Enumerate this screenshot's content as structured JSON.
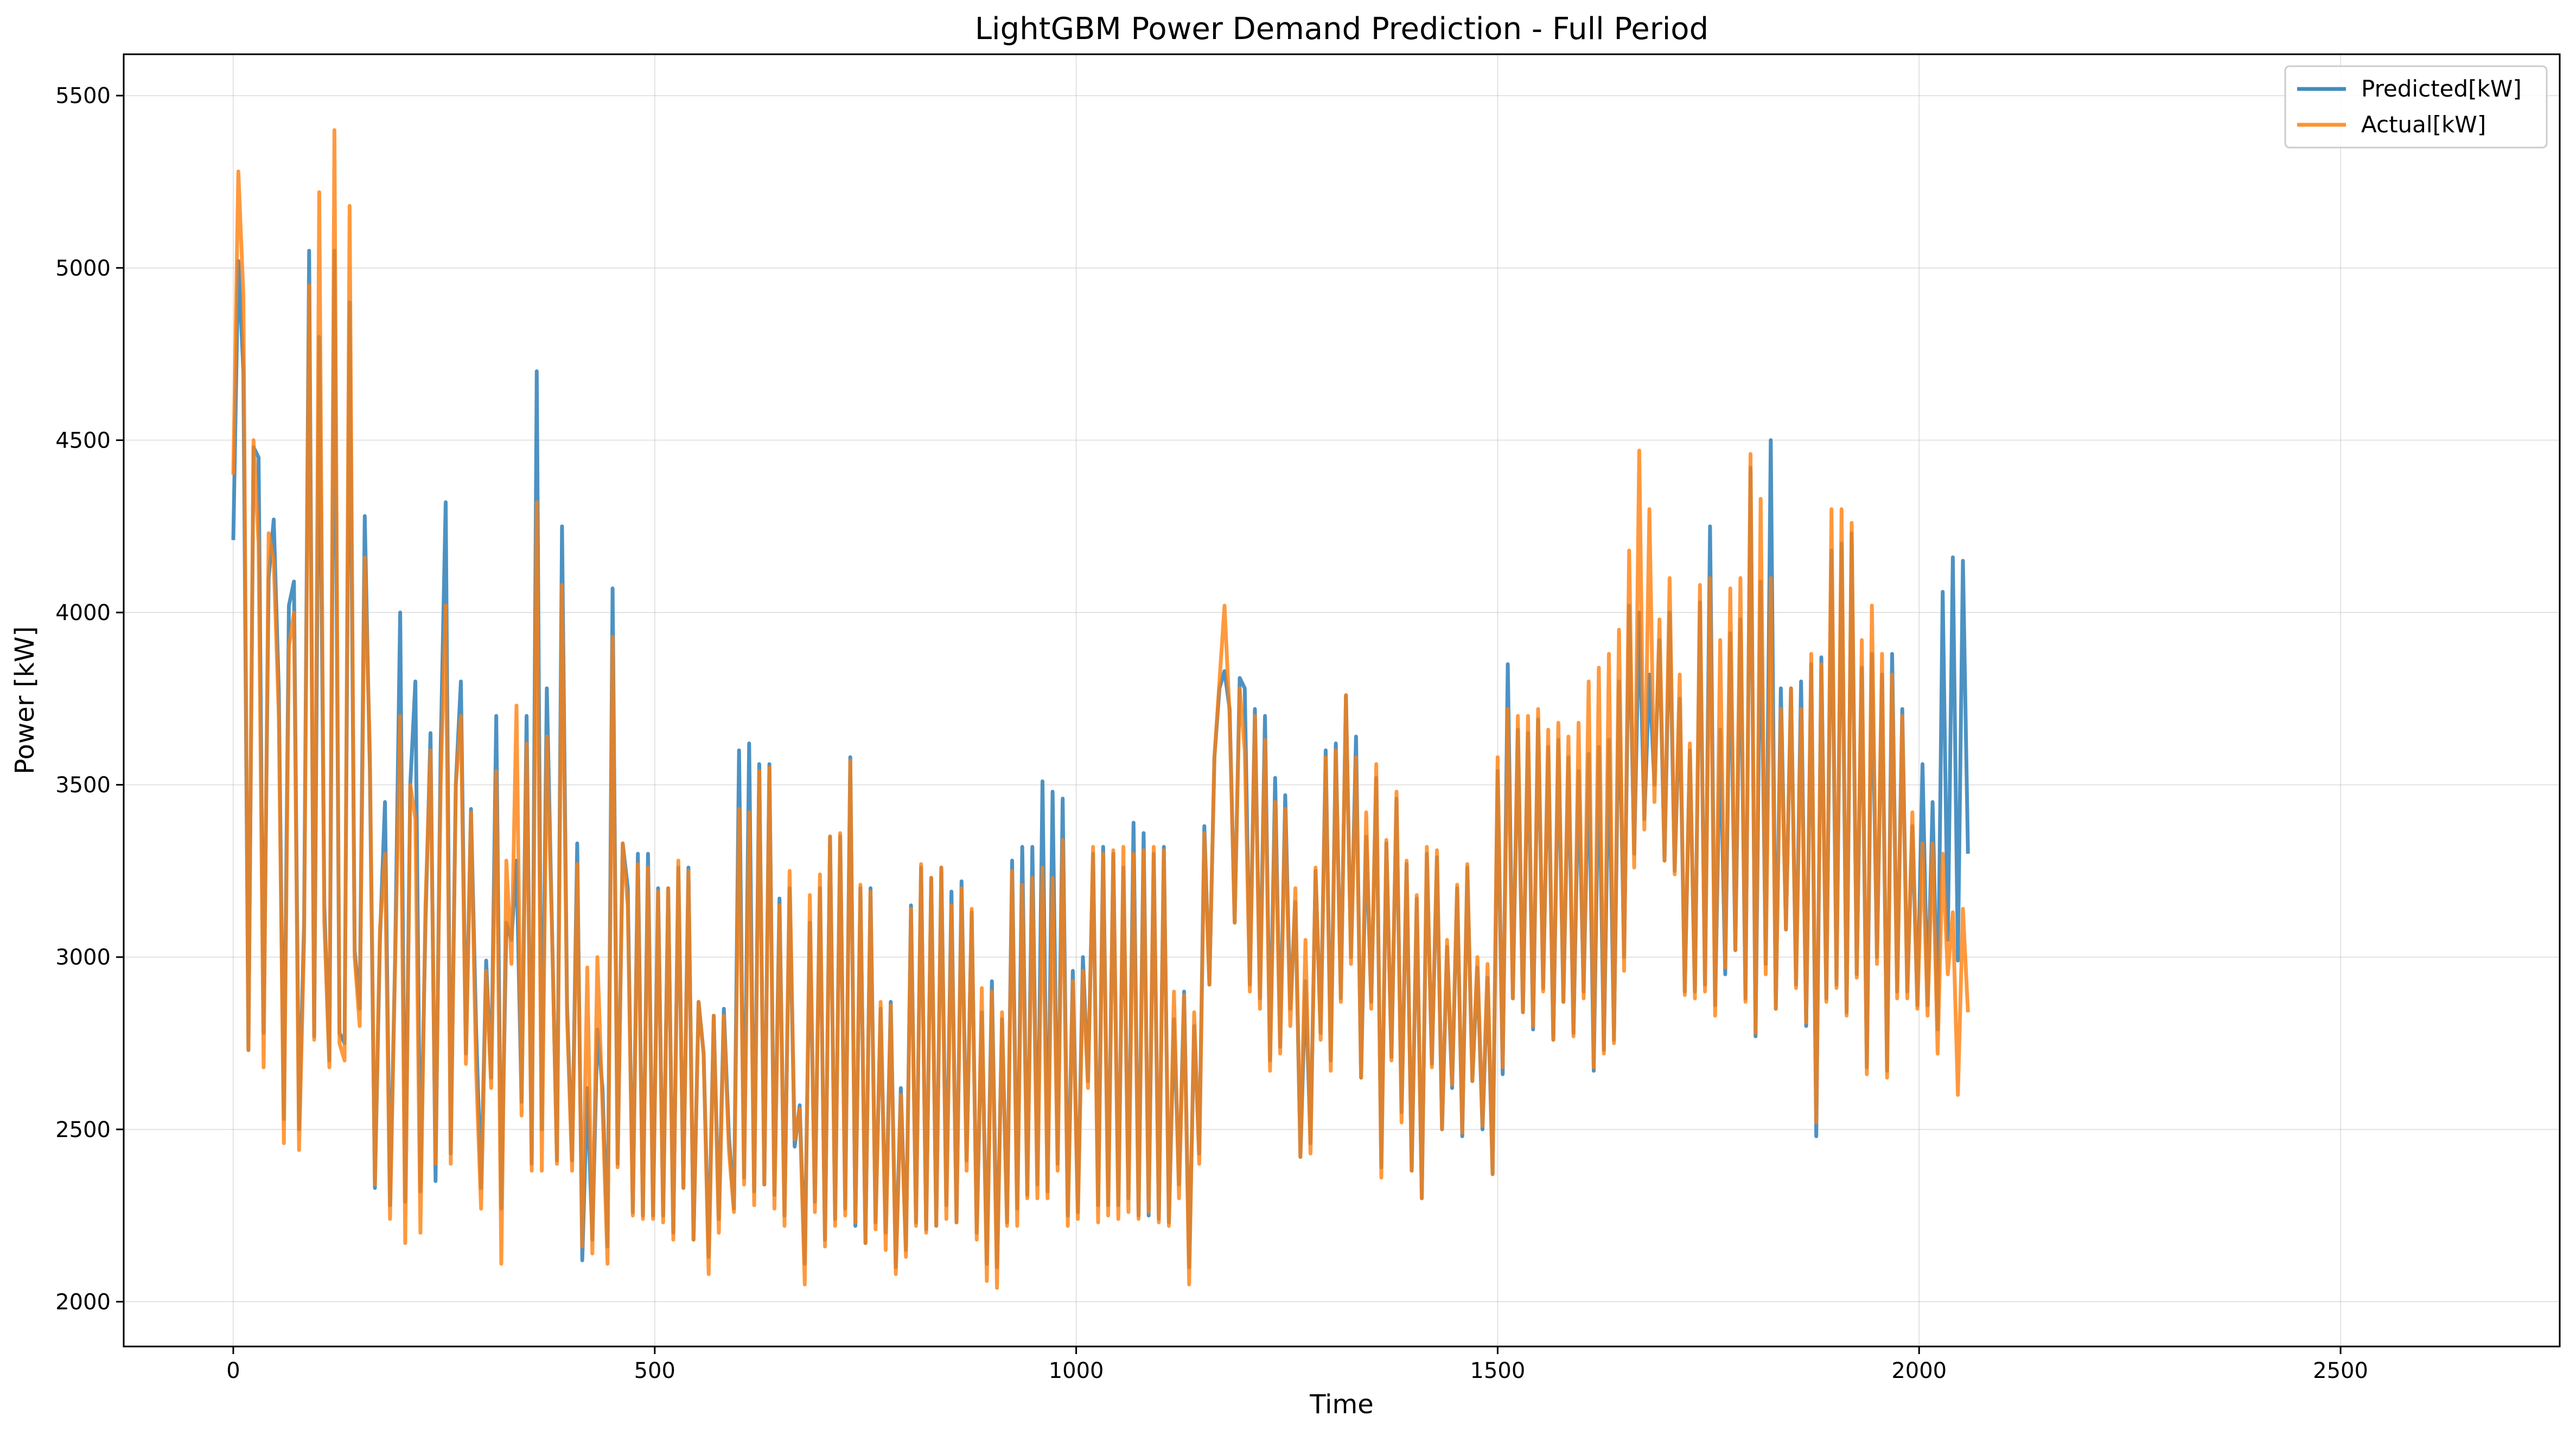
{
  "chart_data": {
    "type": "line",
    "title": "LightGBM Power Demand Prediction - Full Period",
    "xlabel": "Time",
    "ylabel": "Power [kW]",
    "xlim": [
      -130,
      2760
    ],
    "ylim": [
      1870,
      5620
    ],
    "x_ticks": [
      0,
      500,
      1000,
      1500,
      2000,
      2500
    ],
    "y_ticks": [
      2000,
      2500,
      3000,
      3500,
      4000,
      4500,
      5000,
      5500
    ],
    "grid": true,
    "legend_position": "top-right",
    "x_start": 0,
    "x_step": 6,
    "series": [
      {
        "name": "Predicted[kW]",
        "color": "#1f77b4",
        "values": [
          4210,
          5020,
          4700,
          2730,
          4480,
          4450,
          2780,
          4100,
          4270,
          3770,
          2530,
          4020,
          4090,
          2500,
          3100,
          5050,
          2770,
          4800,
          3150,
          2700,
          5050,
          2780,
          2750,
          4900,
          3020,
          2850,
          4280,
          3550,
          2330,
          3050,
          3450,
          2280,
          3000,
          4000,
          2290,
          3500,
          3800,
          2320,
          3100,
          3650,
          2350,
          3600,
          4320,
          2430,
          3500,
          3800,
          2720,
          3430,
          2800,
          2330,
          2990,
          2650,
          3700,
          2270,
          3100,
          3050,
          3280,
          2580,
          3700,
          2400,
          4700,
          2500,
          3780,
          3100,
          2410,
          4250,
          2860,
          2410,
          3330,
          2120,
          2620,
          2180,
          2790,
          2620,
          2160,
          4070,
          2400,
          3330,
          3200,
          2260,
          3300,
          2250,
          3300,
          2250,
          3200,
          2250,
          3200,
          2200,
          3260,
          2330,
          3260,
          2180,
          2870,
          2720,
          2130,
          2830,
          2240,
          2850,
          2480,
          2270,
          3600,
          2360,
          3620,
          2320,
          3560,
          2340,
          3560,
          2310,
          3170,
          2250,
          3200,
          2450,
          2570,
          2110,
          3100,
          2290,
          3200,
          2180,
          3350,
          2240,
          3350,
          2270,
          3580,
          2220,
          3200,
          2170,
          3200,
          2230,
          2850,
          2200,
          2870,
          2100,
          2620,
          2150,
          3150,
          2230,
          3260,
          2210,
          3230,
          2220,
          3260,
          2280,
          3190,
          2230,
          3220,
          2410,
          3130,
          2200,
          2840,
          2110,
          2930,
          2100,
          2820,
          2230,
          3280,
          2270,
          3320,
          2310,
          3320,
          2340,
          3510,
          2320,
          3480,
          2400,
          3460,
          2250,
          2960,
          2260,
          3000,
          2640,
          3300,
          2280,
          3320,
          2280,
          3300,
          2280,
          3260,
          2300,
          3390,
          2250,
          3360,
          2250,
          3300,
          2240,
          3320,
          2230,
          2820,
          2340,
          2900,
          2100,
          2800,
          2430,
          3380,
          2920,
          3580,
          3780,
          3830,
          3720,
          3100,
          3810,
          3780,
          2920,
          3720,
          2880,
          3700,
          2700,
          3520,
          2740,
          3470,
          2850,
          3160,
          2420,
          2930,
          2460,
          3250,
          2780,
          3600,
          2700,
          3620,
          2880,
          3760,
          3000,
          3640,
          2650,
          3350,
          2870,
          3520,
          2390,
          3330,
          2710,
          3460,
          2550,
          3270,
          2380,
          3170,
          2300,
          3300,
          2690,
          3290,
          2500,
          3030,
          2620,
          3200,
          2480,
          3260,
          2640,
          2970,
          2500,
          2940,
          2370,
          3540,
          2660,
          3850,
          2880,
          3660,
          2840,
          3650,
          2790,
          3690,
          2910,
          3610,
          2760,
          3630,
          2870,
          3580,
          2780,
          3540,
          2900,
          3590,
          2670,
          3610,
          2730,
          3630,
          2760,
          3800,
          3000,
          4020,
          3300,
          4000,
          3400,
          3820,
          3500,
          3920,
          3280,
          4000,
          3250,
          3750,
          2900,
          3600,
          2900,
          4030,
          2920,
          4250,
          2860,
          3660,
          2950,
          3940,
          3020,
          3980,
          2880,
          4420,
          2770,
          4090,
          2980,
          4500,
          2850,
          3780,
          3080,
          3780,
          2920,
          3800,
          2800,
          3850,
          2480,
          3870,
          2880,
          4180,
          2920,
          4200,
          2840,
          4230,
          2950,
          3840,
          2680,
          3880,
          3000,
          3820,
          2670,
          3880,
          2900,
          3720,
          2900,
          3380,
          2860,
          3560,
          2860,
          3450,
          2790,
          4060,
          3050,
          4160,
          2990,
          4150,
          3300
        ]
      },
      {
        "name": "Actual[kW]",
        "color": "#ff7f0e",
        "values": [
          4400,
          5280,
          4920,
          2730,
          4500,
          4200,
          2680,
          4230,
          4150,
          3700,
          2460,
          3900,
          4000,
          2440,
          3050,
          4950,
          2760,
          5220,
          3100,
          2680,
          5400,
          2750,
          2700,
          5180,
          3000,
          2800,
          4160,
          3600,
          2340,
          3080,
          3300,
          2240,
          2980,
          3700,
          2170,
          3500,
          3400,
          2200,
          3150,
          3600,
          2400,
          3500,
          4020,
          2400,
          3500,
          3700,
          2690,
          3420,
          2680,
          2270,
          2960,
          2620,
          3540,
          2110,
          3280,
          2980,
          3730,
          2540,
          3620,
          2380,
          4320,
          2380,
          3640,
          3100,
          2400,
          4080,
          2830,
          2380,
          3270,
          2160,
          2970,
          2140,
          3000,
          2570,
          2110,
          3930,
          2390,
          3330,
          3150,
          2250,
          3270,
          2240,
          3260,
          2240,
          3190,
          2230,
          3200,
          2180,
          3280,
          2330,
          3250,
          2180,
          2870,
          2720,
          2080,
          2830,
          2200,
          2830,
          2440,
          2260,
          3430,
          2340,
          3420,
          2280,
          3540,
          2340,
          3550,
          2270,
          3150,
          2220,
          3250,
          2470,
          2560,
          2050,
          3180,
          2260,
          3240,
          2160,
          3350,
          2220,
          3360,
          2250,
          3570,
          2230,
          3210,
          2170,
          3190,
          2210,
          2870,
          2150,
          2860,
          2080,
          2600,
          2130,
          3140,
          2220,
          3270,
          2200,
          3230,
          2220,
          3260,
          2240,
          3150,
          2230,
          3200,
          2380,
          3140,
          2180,
          2910,
          2060,
          2900,
          2040,
          2840,
          2220,
          3250,
          2220,
          3210,
          2300,
          3230,
          2300,
          3260,
          2300,
          3230,
          2380,
          3340,
          2220,
          2930,
          2240,
          2960,
          2620,
          3320,
          2230,
          3300,
          2250,
          3310,
          2240,
          3320,
          2260,
          3300,
          2240,
          3310,
          2260,
          3320,
          2230,
          3310,
          2220,
          2900,
          2300,
          2890,
          2050,
          2840,
          2400,
          3360,
          2920,
          3580,
          3800,
          4020,
          3700,
          3100,
          3780,
          3600,
          2900,
          3700,
          2850,
          3630,
          2670,
          3450,
          2720,
          3430,
          2800,
          3200,
          2420,
          3050,
          2430,
          3260,
          2760,
          3580,
          2670,
          3600,
          2870,
          3760,
          2980,
          3580,
          2650,
          3420,
          2850,
          3560,
          2360,
          3340,
          2700,
          3480,
          2520,
          3280,
          2380,
          3180,
          2300,
          3320,
          2680,
          3310,
          2500,
          3050,
          2630,
          3210,
          2490,
          3270,
          2640,
          3000,
          2510,
          2980,
          2370,
          3580,
          2680,
          3720,
          2880,
          3700,
          2840,
          3700,
          2800,
          3720,
          2900,
          3660,
          2760,
          3680,
          2870,
          3640,
          2770,
          3680,
          2880,
          3800,
          2680,
          3840,
          2720,
          3880,
          2750,
          3950,
          2960,
          4180,
          3260,
          4470,
          3370,
          4300,
          3450,
          3980,
          3280,
          4100,
          3240,
          3820,
          2890,
          3620,
          2880,
          4080,
          2900,
          4100,
          2830,
          3920,
          2970,
          4070,
          3020,
          4100,
          2870,
          4460,
          2780,
          4330,
          2950,
          4100,
          2850,
          3720,
          3080,
          3780,
          2910,
          3720,
          2810,
          3880,
          2520,
          3850,
          2870,
          4300,
          2910,
          4300,
          2830,
          4260,
          2940,
          3920,
          2660,
          4020,
          2980,
          3880,
          2650,
          3820,
          2880,
          3700,
          2880,
          3420,
          2850,
          3330,
          2830,
          3330,
          2720,
          3300,
          2950,
          3130,
          2600,
          3140,
          2840
        ]
      }
    ]
  }
}
